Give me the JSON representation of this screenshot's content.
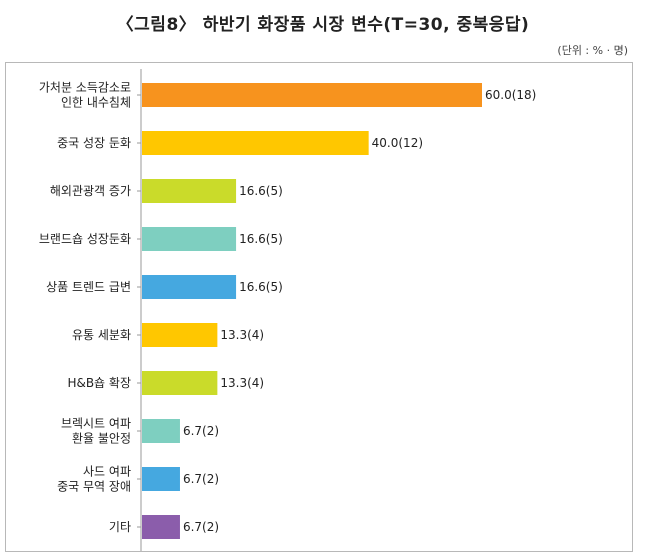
{
  "title": "〈그림8〉 하반기 화장품 시장 변수(T=30, 중복응답)",
  "unit_note": "(단위 : % · 명)",
  "chart_data": {
    "type": "bar",
    "orientation": "horizontal",
    "title": "〈그림8〉 하반기 화장품 시장 변수(T=30, 중복응답)",
    "xlabel": "",
    "ylabel": "",
    "xlim": [
      0,
      60
    ],
    "grid": false,
    "categories": [
      [
        "가처분 소득감소로",
        "인한 내수침체"
      ],
      [
        "중국 성장 둔화"
      ],
      [
        "해외관광객 증가"
      ],
      [
        "브랜드숍 성장둔화"
      ],
      [
        "상품 트렌드 급변"
      ],
      [
        "유통 세분화"
      ],
      [
        "H&B숍 확장"
      ],
      [
        "브렉시트 여파",
        "환율 불안정"
      ],
      [
        "사드 여파",
        "중국 무역 장애"
      ],
      [
        "기타"
      ]
    ],
    "values": [
      60.0,
      40.0,
      16.6,
      16.6,
      16.6,
      13.3,
      13.3,
      6.7,
      6.7,
      6.7
    ],
    "data_labels": [
      "60.0(18)",
      "40.0(12)",
      "16.6(5)",
      "16.6(5)",
      "16.6(5)",
      "13.3(4)",
      "13.3(4)",
      "6.7(2)",
      "6.7(2)",
      "6.7(2)"
    ],
    "colors": [
      "#F7931E",
      "#FFC700",
      "#CADB2A",
      "#7ECFC0",
      "#45A8E0",
      "#FFC700",
      "#CADB2A",
      "#7ECFC0",
      "#45A8E0",
      "#8B5DAB"
    ]
  }
}
